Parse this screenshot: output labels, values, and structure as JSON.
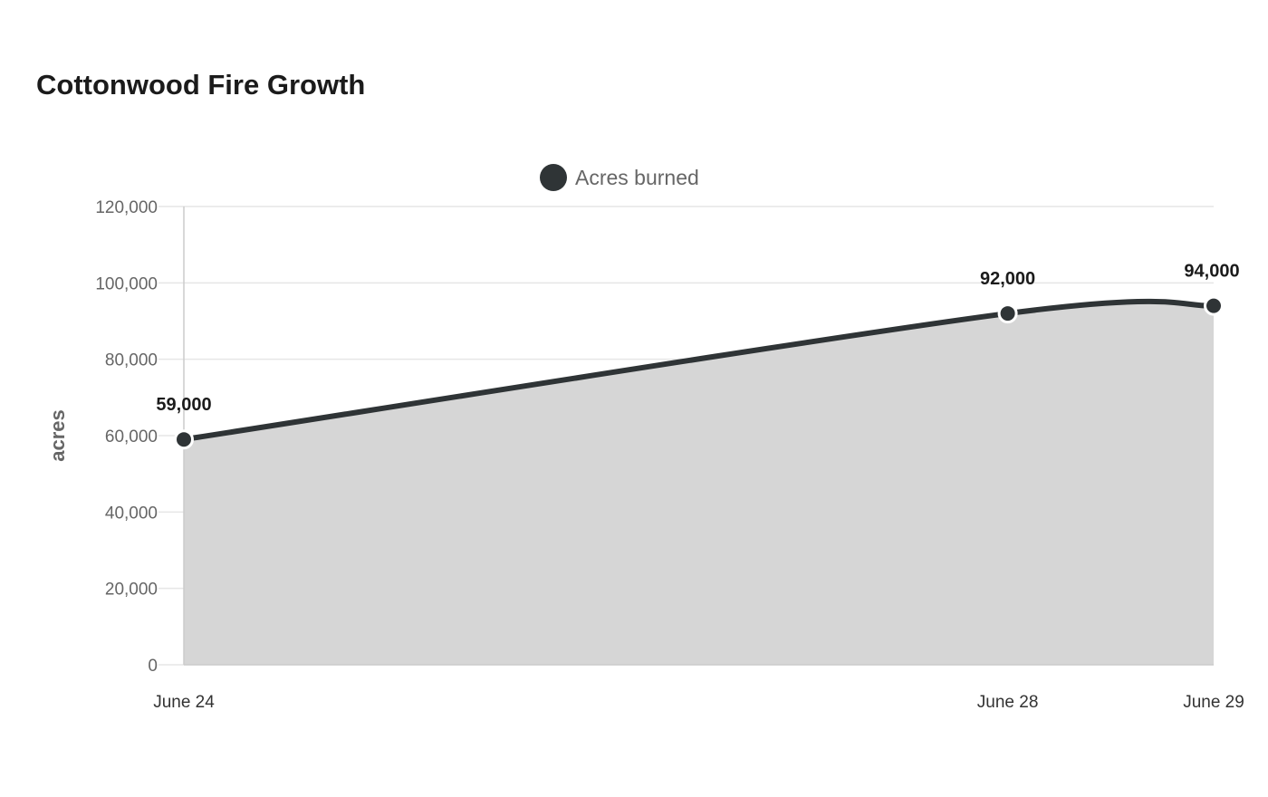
{
  "chart_data": {
    "type": "area",
    "title": "Cottonwood Fire Growth",
    "xlabel": "",
    "ylabel": "acres",
    "categories": [
      "June 24",
      "June 28",
      "June 29"
    ],
    "x": [
      "2024-06-24",
      "2024-06-28",
      "2024-06-29"
    ],
    "series": [
      {
        "name": "Acres burned",
        "values": [
          59000,
          92000,
          94000
        ],
        "color": "#2f3436"
      }
    ],
    "data_labels": [
      "59,000",
      "92,000",
      "94,000"
    ],
    "yticks": [
      "0",
      "20,000",
      "40,000",
      "60,000",
      "80,000",
      "100,000",
      "120,000"
    ],
    "ylim": [
      0,
      120000
    ],
    "area_color": "#d6d6d6",
    "grid": true,
    "legend_position": "top-center"
  }
}
